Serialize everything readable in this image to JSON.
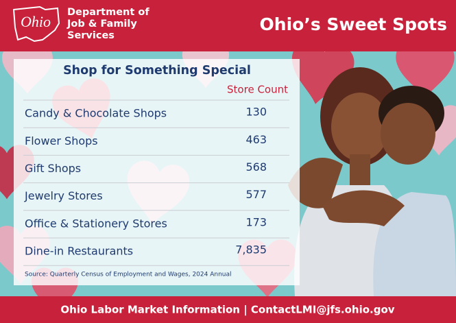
{
  "header": {
    "logo": "Ohio",
    "agency": [
      "Department of",
      "Job & Family",
      "Services"
    ],
    "title": "Ohio’s Sweet Spots"
  },
  "table": {
    "title": "Shop for Something Special",
    "columns": [
      "Store Count"
    ],
    "rows": [
      [
        "Candy & Chocolate Shops",
        "130"
      ],
      [
        "Flower Shops",
        "463"
      ],
      [
        "Gift Shops",
        "568"
      ],
      [
        "Jewelry Stores",
        "577"
      ],
      [
        "Office & Stationery Stores",
        "173"
      ],
      [
        "Dine-in Restaurants",
        "7,835"
      ]
    ]
  },
  "source": "Source: Quarterly Census of Employment and Wages, 2024 Annual",
  "footer": "Ohio Labor Market Information | ContactLMI@jfs.ohio.gov"
}
